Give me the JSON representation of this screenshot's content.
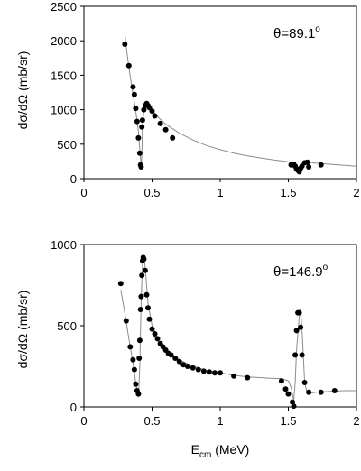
{
  "chart_data": [
    {
      "type": "scatter",
      "annotation": "θ=89.1",
      "annotation_sup": "o",
      "ylabel": "dσ/dΩ (mb/sr)",
      "xlabel": "",
      "xlim": [
        0,
        2
      ],
      "ylim": [
        0,
        2500
      ],
      "xticks": [
        "0",
        "0.5",
        "1",
        "1.5",
        "2"
      ],
      "xtick_values": [
        0,
        0.5,
        1,
        1.5,
        2
      ],
      "yticks": [
        "0",
        "500",
        "1000",
        "1500",
        "2000",
        "2500"
      ],
      "ytick_values": [
        0,
        500,
        1000,
        1500,
        2000,
        2500
      ],
      "series": [
        {
          "kind": "points",
          "x": [
            0.3,
            0.33,
            0.36,
            0.37,
            0.38,
            0.39,
            0.4,
            0.41,
            0.415,
            0.42,
            0.425,
            0.43,
            0.44,
            0.45,
            0.46,
            0.47,
            0.48,
            0.5,
            0.52,
            0.56,
            0.6,
            0.65,
            1.52,
            1.54,
            1.55,
            1.56,
            1.57,
            1.58,
            1.59,
            1.6,
            1.62,
            1.64,
            1.65,
            1.74
          ],
          "y": [
            1950,
            1640,
            1330,
            1220,
            1020,
            830,
            590,
            370,
            200,
            170,
            750,
            850,
            1000,
            1060,
            1090,
            1060,
            1030,
            980,
            910,
            800,
            710,
            590,
            200,
            210,
            180,
            140,
            120,
            100,
            150,
            180,
            230,
            240,
            170,
            200
          ]
        },
        {
          "kind": "curve",
          "x": [
            0.3,
            0.32,
            0.34,
            0.36,
            0.38,
            0.4,
            0.41,
            0.42,
            0.425,
            0.43,
            0.44,
            0.45,
            0.46,
            0.48,
            0.5,
            0.55,
            0.6,
            0.7,
            0.8,
            0.9,
            1.0,
            1.1,
            1.2,
            1.3,
            1.4,
            1.5,
            1.54,
            1.56,
            1.58,
            1.6,
            1.62,
            1.64,
            1.7,
            1.8,
            1.9,
            2.0
          ],
          "y": [
            2100,
            1760,
            1480,
            1230,
            980,
            680,
            420,
            190,
            350,
            780,
            990,
            1080,
            1080,
            1030,
            990,
            880,
            790,
            660,
            560,
            480,
            420,
            370,
            330,
            300,
            270,
            245,
            240,
            180,
            110,
            180,
            250,
            240,
            225,
            210,
            195,
            180
          ]
        }
      ]
    },
    {
      "type": "scatter",
      "annotation": "θ=146.9",
      "annotation_sup": "o",
      "ylabel": "dσ/dΩ (mb/sr)",
      "xlabel": "E",
      "xlabel_sub": "cm",
      "xlabel_unit": " (MeV)",
      "xlim": [
        0,
        2
      ],
      "ylim": [
        0,
        1000
      ],
      "xticks": [
        "0",
        "0.5",
        "1",
        "1.5",
        "2"
      ],
      "xtick_values": [
        0,
        0.5,
        1,
        1.5,
        2
      ],
      "yticks": [
        "0",
        "500",
        "1000"
      ],
      "ytick_values": [
        0,
        500,
        1000
      ],
      "series": [
        {
          "kind": "points",
          "x": [
            0.27,
            0.31,
            0.34,
            0.36,
            0.37,
            0.38,
            0.39,
            0.4,
            0.405,
            0.41,
            0.415,
            0.42,
            0.425,
            0.43,
            0.435,
            0.44,
            0.45,
            0.46,
            0.47,
            0.48,
            0.5,
            0.52,
            0.54,
            0.56,
            0.58,
            0.6,
            0.62,
            0.64,
            0.67,
            0.7,
            0.73,
            0.76,
            0.8,
            0.84,
            0.88,
            0.92,
            0.96,
            1.0,
            1.1,
            1.2,
            1.45,
            1.48,
            1.5,
            1.53,
            1.54,
            1.55,
            1.56,
            1.57,
            1.58,
            1.59,
            1.6,
            1.62,
            1.65,
            1.74,
            1.84
          ],
          "y": [
            760,
            530,
            370,
            290,
            230,
            140,
            100,
            80,
            300,
            410,
            600,
            680,
            810,
            900,
            920,
            910,
            840,
            690,
            610,
            540,
            480,
            450,
            420,
            390,
            370,
            350,
            330,
            320,
            300,
            280,
            260,
            250,
            240,
            230,
            220,
            215,
            210,
            210,
            190,
            180,
            160,
            110,
            80,
            30,
            5,
            320,
            470,
            580,
            580,
            490,
            320,
            150,
            90,
            90,
            100
          ]
        },
        {
          "kind": "curve",
          "x": [
            0.27,
            0.3,
            0.33,
            0.36,
            0.38,
            0.4,
            0.41,
            0.42,
            0.43,
            0.44,
            0.45,
            0.47,
            0.5,
            0.55,
            0.6,
            0.7,
            0.8,
            0.9,
            1.0,
            1.1,
            1.2,
            1.3,
            1.4,
            1.45,
            1.5,
            1.52,
            1.54,
            1.55,
            1.56,
            1.58,
            1.59,
            1.6,
            1.62,
            1.64,
            1.7,
            1.8,
            1.9,
            2.0
          ],
          "y": [
            720,
            580,
            420,
            270,
            150,
            60,
            250,
            650,
            880,
            920,
            860,
            640,
            500,
            400,
            350,
            290,
            250,
            225,
            210,
            195,
            185,
            180,
            175,
            175,
            160,
            120,
            40,
            150,
            350,
            560,
            600,
            480,
            150,
            80,
            90,
            95,
            100,
            100
          ]
        }
      ]
    }
  ]
}
